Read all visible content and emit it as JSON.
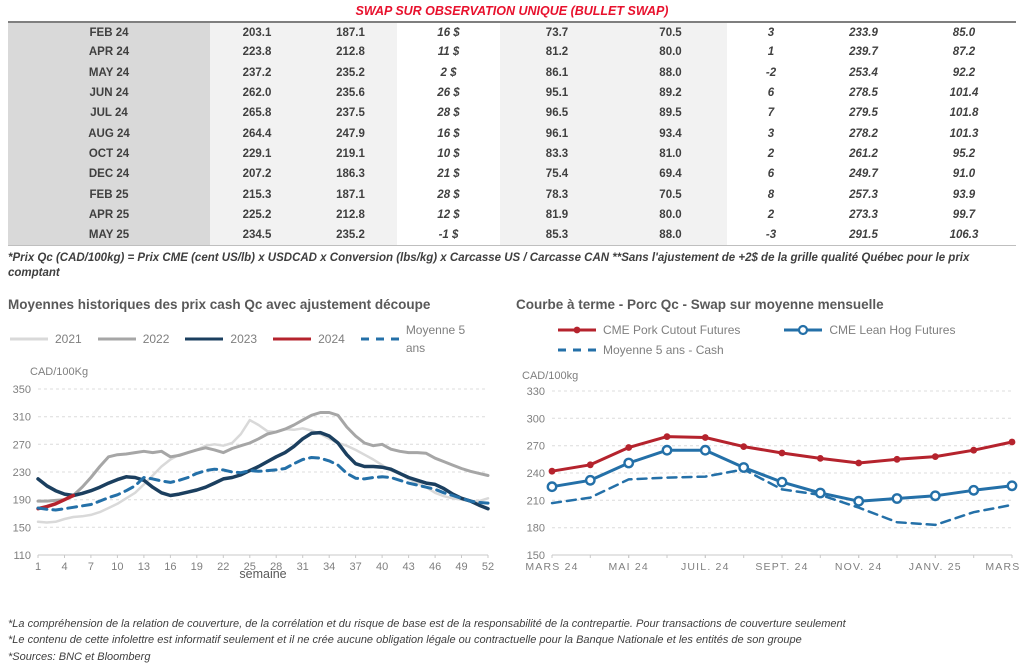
{
  "header": {
    "title": "SWAP SUR OBSERVATION UNIQUE (BULLET SWAP)",
    "title_color": "#e8112d"
  },
  "table": {
    "rows": [
      [
        "FEB 24",
        "203.1",
        "187.1",
        "16 $",
        "73.7",
        "70.5",
        "3",
        "233.9",
        "85.0"
      ],
      [
        "APR 24",
        "223.8",
        "212.8",
        "11 $",
        "81.2",
        "80.0",
        "1",
        "239.7",
        "87.2"
      ],
      [
        "MAY 24",
        "237.2",
        "235.2",
        "2 $",
        "86.1",
        "88.0",
        "-2",
        "253.4",
        "92.2"
      ],
      [
        "JUN 24",
        "262.0",
        "235.6",
        "26 $",
        "95.1",
        "89.2",
        "6",
        "278.5",
        "101.4"
      ],
      [
        "JUL 24",
        "265.8",
        "237.5",
        "28 $",
        "96.5",
        "89.5",
        "7",
        "279.5",
        "101.8"
      ],
      [
        "AUG 24",
        "264.4",
        "247.9",
        "16 $",
        "96.1",
        "93.4",
        "3",
        "278.2",
        "101.3"
      ],
      [
        "OCT 24",
        "229.1",
        "219.1",
        "10 $",
        "83.3",
        "81.0",
        "2",
        "261.2",
        "95.2"
      ],
      [
        "DEC 24",
        "207.2",
        "186.3",
        "21 $",
        "75.4",
        "69.4",
        "6",
        "249.7",
        "91.0"
      ],
      [
        "FEB 25",
        "215.3",
        "187.1",
        "28 $",
        "78.3",
        "70.5",
        "8",
        "257.3",
        "93.9"
      ],
      [
        "APR 25",
        "225.2",
        "212.8",
        "12 $",
        "81.9",
        "80.0",
        "2",
        "273.3",
        "99.7"
      ],
      [
        "MAY 25",
        "234.5",
        "235.2",
        "-1 $",
        "85.3",
        "88.0",
        "-3",
        "291.5",
        "106.3"
      ]
    ],
    "footnote": "*Prix Qc (CAD/100kg) = Prix CME (cent US/lb) x USDCAD x Conversion (lbs/kg) x Carcasse US / Carcasse CAN **Sans l'ajustement de +2$ de la grille qualité Québec pour le prix comptant",
    "colors": {
      "positive_green": "#00a650",
      "negative_red": "#e8112d",
      "projection_blue": "#1f6291",
      "month_column_bg": "#d9d9d9",
      "band_bg": "#f2f2f2"
    }
  },
  "chart_data": [
    {
      "id": "historical",
      "type": "line",
      "title": "Moyennes historiques des prix cash Qc avec ajustement découpe",
      "unit_label": "CAD/100Kg",
      "xlabel": "semaine",
      "x_min": 1,
      "x_max": 52,
      "xticks": [
        1,
        4,
        7,
        10,
        13,
        16,
        19,
        22,
        25,
        28,
        31,
        34,
        37,
        40,
        43,
        46,
        49,
        52
      ],
      "ylim": [
        110,
        350
      ],
      "yticks": [
        110,
        150,
        190,
        230,
        270,
        310,
        350
      ],
      "grid": "dashed",
      "legend_position": "top",
      "series": [
        {
          "name": "2021",
          "color": "#d9d9d9",
          "style": "solid",
          "width": 2.5,
          "marker": "none",
          "values": [
            158,
            157,
            158,
            162,
            165,
            166,
            168,
            172,
            178,
            184,
            192,
            200,
            212,
            225,
            238,
            248,
            255,
            258,
            262,
            268,
            270,
            268,
            272,
            285,
            305,
            298,
            289,
            288,
            292,
            291,
            293,
            290,
            285,
            278,
            272,
            268,
            262,
            255,
            248,
            240,
            232,
            228,
            220,
            214,
            208,
            200,
            195,
            192,
            190,
            188,
            188,
            192
          ]
        },
        {
          "name": "2022",
          "color": "#a6a6a6",
          "style": "solid",
          "width": 3,
          "marker": "none",
          "values": [
            188,
            188,
            189,
            190,
            196,
            208,
            222,
            238,
            252,
            255,
            256,
            258,
            260,
            258,
            260,
            252,
            254,
            258,
            262,
            265,
            262,
            258,
            264,
            268,
            272,
            278,
            285,
            288,
            292,
            298,
            305,
            312,
            316,
            316,
            312,
            295,
            282,
            272,
            268,
            270,
            263,
            260,
            258,
            258,
            257,
            250,
            245,
            240,
            235,
            231,
            228,
            225
          ]
        },
        {
          "name": "2023",
          "color": "#1b3f5f",
          "style": "solid",
          "width": 3.5,
          "marker": "none",
          "values": [
            220,
            210,
            203,
            198,
            196,
            199,
            203,
            208,
            214,
            219,
            223,
            222,
            218,
            208,
            200,
            196,
            198,
            201,
            204,
            208,
            214,
            220,
            222,
            226,
            232,
            238,
            245,
            252,
            258,
            267,
            278,
            286,
            287,
            282,
            272,
            255,
            242,
            238,
            238,
            237,
            234,
            228,
            222,
            218,
            214,
            212,
            206,
            198,
            192,
            188,
            182,
            177
          ]
        },
        {
          "name": "2024",
          "color": "#b5232d",
          "style": "solid",
          "width": 3.5,
          "marker": "none",
          "values": [
            177,
            180,
            184,
            190,
            196
          ]
        },
        {
          "name": "Moyenne 5 ans",
          "color": "#2470a8",
          "style": "dashed",
          "width": 3,
          "marker": "none",
          "values": [
            178,
            176,
            175,
            177,
            179,
            181,
            183,
            188,
            193,
            197,
            203,
            210,
            222,
            220,
            217,
            215,
            218,
            222,
            228,
            232,
            234,
            233,
            230,
            229,
            232,
            231,
            232,
            233,
            235,
            242,
            248,
            251,
            250,
            246,
            240,
            228,
            221,
            220,
            222,
            223,
            222,
            218,
            214,
            211,
            208,
            205,
            200,
            196,
            192,
            188,
            186,
            185
          ]
        }
      ]
    },
    {
      "id": "forward",
      "type": "line",
      "title": "Courbe à terme - Porc Qc - Swap sur moyenne mensuelle",
      "unit_label": "CAD/100kg",
      "xlabel": "",
      "x_min": 0,
      "x_max": 12,
      "xticks": [
        0,
        2,
        4,
        6,
        8,
        10,
        12
      ],
      "xtick_labels": [
        "MARS 24",
        "MAI 24",
        "JUIL. 24",
        "SEPT. 24",
        "NOV. 24",
        "JANV. 25",
        "MARS 25"
      ],
      "ylim": [
        150,
        330
      ],
      "yticks": [
        150,
        180,
        210,
        240,
        270,
        300,
        330
      ],
      "grid": "dashed",
      "legend_position": "top",
      "series": [
        {
          "name": "CME Pork Cutout Futures",
          "color": "#b5232d",
          "style": "solid",
          "width": 3,
          "marker": "filled",
          "values": [
            242,
            249,
            268,
            280,
            279,
            269,
            262,
            256,
            251,
            255,
            258,
            265,
            274
          ]
        },
        {
          "name": "CME Lean Hog Futures",
          "color": "#2470a8",
          "style": "solid",
          "width": 3,
          "marker": "open",
          "values": [
            225,
            232,
            251,
            265,
            265,
            246,
            230,
            218,
            209,
            212,
            215,
            221,
            226
          ]
        },
        {
          "name": "Moyenne 5 ans - Cash",
          "color": "#2470a8",
          "style": "dashed",
          "width": 2.5,
          "marker": "none",
          "values": [
            207,
            213,
            233,
            235,
            236,
            244,
            222,
            216,
            202,
            186,
            183,
            197,
            205
          ]
        }
      ]
    }
  ],
  "footer": {
    "lines": [
      "*La compréhension de la relation de couverture, de la corrélation et du risque de base est de la responsabilité de la contrepartie. Pour transactions de couverture seulement",
      "*Le contenu de cette infolettre est informatif seulement et il ne crée aucune obligation légale ou contractuelle pour la Banque Nationale et les entités de son groupe",
      "*Sources: BNC et Bloomberg"
    ]
  }
}
